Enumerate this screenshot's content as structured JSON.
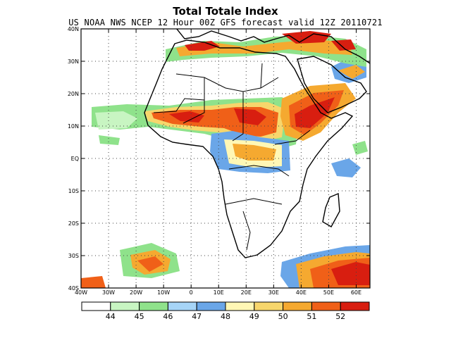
{
  "map": {
    "title": "Total Totale Index",
    "subtitle": "US NOAA NWS NCEP 12 Hour 00Z GFS forecast valid 12Z 20110721",
    "extent": {
      "lon_min": -40,
      "lon_max": 65,
      "lat_min": -40,
      "lat_max": 40
    },
    "lat_labels": [
      {
        "lat": 40,
        "label": "40N"
      },
      {
        "lat": 30,
        "label": "30N"
      },
      {
        "lat": 20,
        "label": "20N"
      },
      {
        "lat": 10,
        "label": "10N"
      },
      {
        "lat": 0,
        "label": "EQ"
      },
      {
        "lat": -10,
        "label": "10S"
      },
      {
        "lat": -20,
        "label": "20S"
      },
      {
        "lat": -30,
        "label": "30S"
      },
      {
        "lat": -40,
        "label": "40S"
      }
    ],
    "lon_labels": [
      {
        "lon": -40,
        "label": "40W"
      },
      {
        "lon": -30,
        "label": "30W"
      },
      {
        "lon": -20,
        "label": "20W"
      },
      {
        "lon": -10,
        "label": "10W"
      },
      {
        "lon": 0,
        "label": "0"
      },
      {
        "lon": 10,
        "label": "10E"
      },
      {
        "lon": 20,
        "label": "20E"
      },
      {
        "lon": 30,
        "label": "30E"
      },
      {
        "lon": 40,
        "label": "40E"
      },
      {
        "lon": 50,
        "label": "50E"
      },
      {
        "lon": 60,
        "label": "60E"
      }
    ],
    "gridlines": "dotted"
  },
  "legend": {
    "bins": [
      {
        "color": "#ffffff"
      },
      {
        "color": "#c8f5c2"
      },
      {
        "color": "#8fe28b"
      },
      {
        "color": "#a6d4f7"
      },
      {
        "color": "#6aa6e8"
      },
      {
        "color": "#fff7b5"
      },
      {
        "color": "#f7d66c"
      },
      {
        "color": "#f5a930"
      },
      {
        "color": "#f06018"
      },
      {
        "color": "#d81e10"
      }
    ],
    "ticks": [
      "44",
      "45",
      "46",
      "47",
      "48",
      "49",
      "50",
      "51",
      "52"
    ]
  },
  "field": {
    "regions": [
      {
        "name": "sahel-band",
        "colors": [
          "#8fe28b",
          "#f7d66c",
          "#f06018",
          "#d81e10"
        ],
        "peak": 52
      },
      {
        "name": "ethiopia-red-sea",
        "colors": [
          "#f5a930",
          "#f06018",
          "#d81e10"
        ],
        "peak": 52
      },
      {
        "name": "north-africa-mediterranean",
        "colors": [
          "#8fe28b",
          "#f5a930",
          "#d81e10"
        ],
        "peak": 52
      },
      {
        "name": "central-africa-congo",
        "colors": [
          "#6aa6e8",
          "#fff7b5",
          "#f5a930"
        ],
        "peak": 51
      },
      {
        "name": "south-atlantic",
        "colors": [
          "#8fe28b",
          "#f5a930",
          "#d81e10"
        ],
        "peak": 52
      },
      {
        "name": "southwest-indian-ocean",
        "colors": [
          "#6aa6e8",
          "#f5a930",
          "#d81e10"
        ],
        "peak": 52
      }
    ]
  }
}
